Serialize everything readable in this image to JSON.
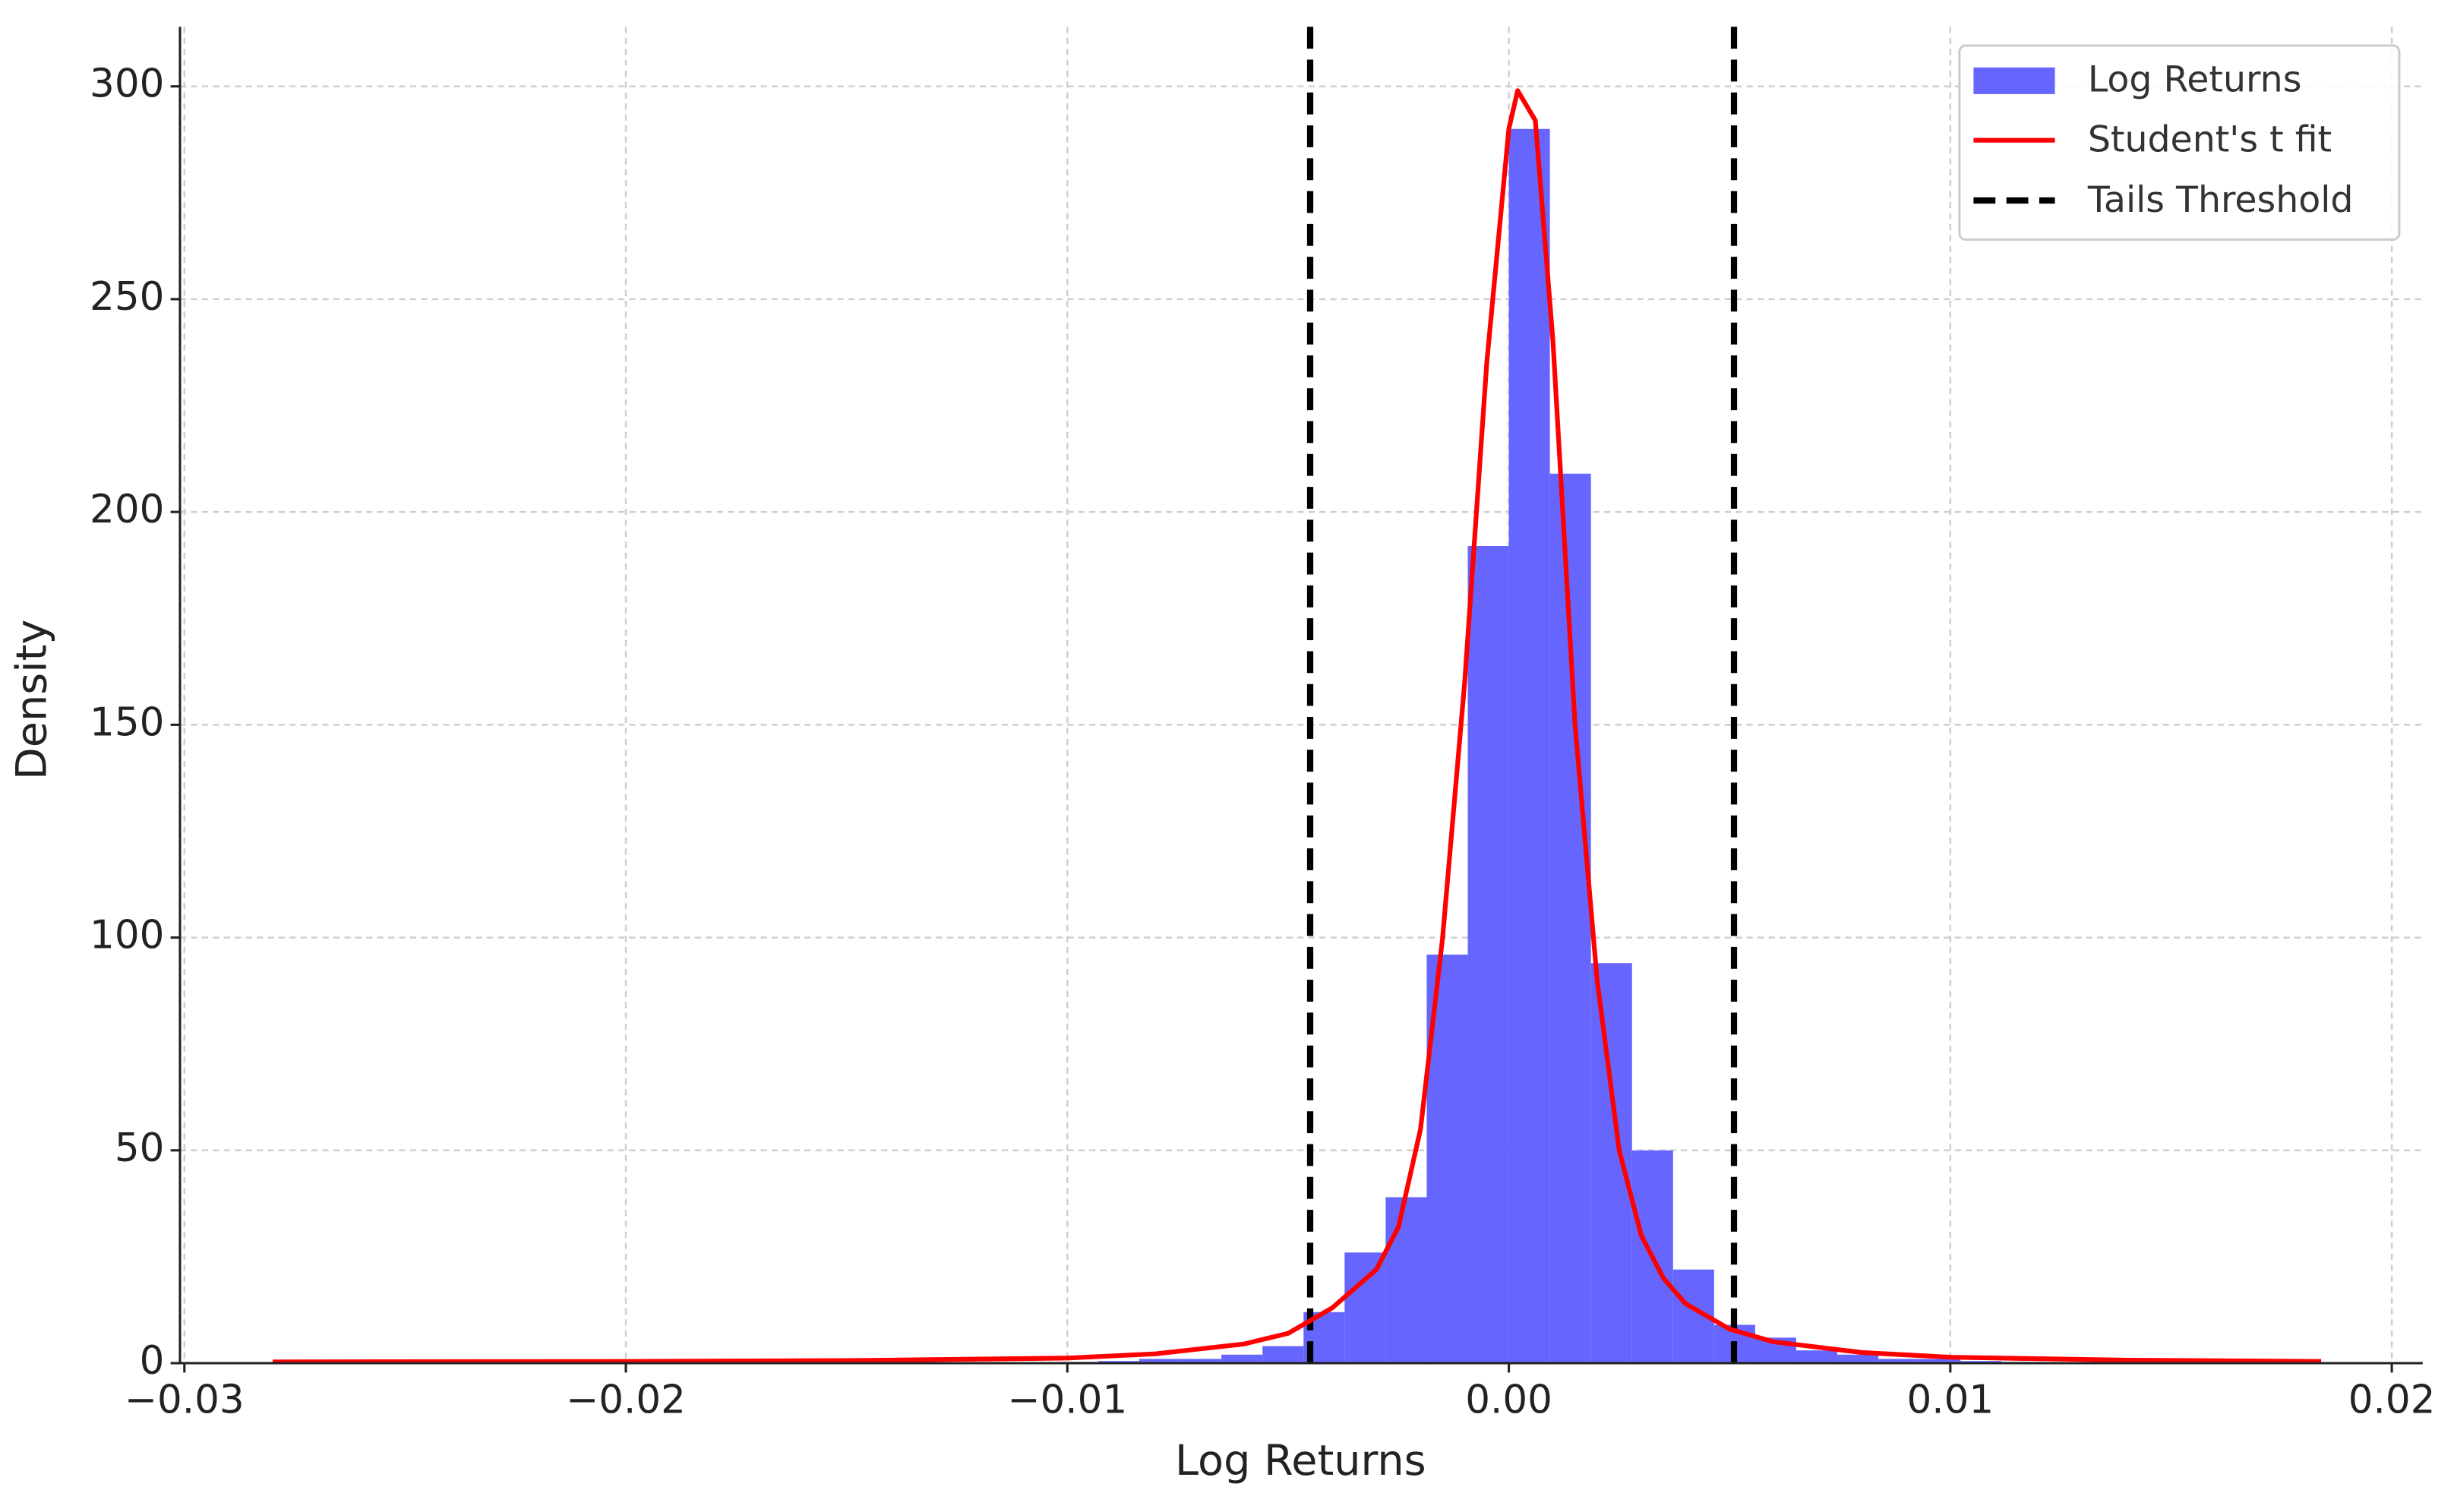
{
  "chart_data": {
    "type": "histogram",
    "xlabel": "Log Returns",
    "ylabel": "Density",
    "name": "Log Returns",
    "color": "#6666ff",
    "bins": [
      -0.0279,
      -0.02697,
      -0.02604,
      -0.02511,
      -0.02418,
      -0.02325,
      -0.02232,
      -0.02139,
      -0.02046,
      -0.01953,
      -0.0186,
      -0.01767,
      -0.01674,
      -0.01581,
      -0.01488,
      -0.01395,
      -0.01302,
      -0.01209,
      -0.01116,
      -0.01023,
      -0.0093,
      -0.00837,
      -0.00744,
      -0.00651,
      -0.00558,
      -0.00465,
      -0.00372,
      -0.00279,
      -0.00186,
      -0.00093,
      0,
      0.00093,
      0.00186,
      0.00279,
      0.00372,
      0.00465,
      0.00558,
      0.00651,
      0.00744,
      0.00837,
      0.0093,
      0.01023,
      0.01116,
      0.01209,
      0.01302,
      0.01395,
      0.01488,
      0.01581,
      0.01674,
      0.01767,
      0.0186
    ],
    "values": [
      0.3,
      0,
      0,
      0,
      0,
      0,
      0,
      0,
      0,
      0,
      0,
      0,
      0,
      0,
      0,
      0,
      0,
      0,
      0.2,
      0.3,
      0.5,
      1,
      1,
      2,
      4,
      12,
      26,
      39,
      96,
      192,
      290,
      209,
      94,
      50,
      22,
      9,
      6,
      3,
      2,
      1,
      1,
      0.5,
      0.3,
      0.2,
      0,
      0,
      0,
      0,
      0,
      0.2
    ],
    "fit": {
      "name": "Student's t fit",
      "color": "#ff0000",
      "x": [
        -0.028,
        -0.02,
        -0.015,
        -0.01,
        -0.008,
        -0.006,
        -0.005,
        -0.004,
        -0.003,
        -0.0025,
        -0.002,
        -0.0015,
        -0.001,
        -0.0005,
        0,
        0.0002,
        0.0006,
        0.001,
        0.0015,
        0.002,
        0.0025,
        0.003,
        0.0035,
        0.004,
        0.005,
        0.006,
        0.008,
        0.01,
        0.014,
        0.0184
      ],
      "y": [
        0.3,
        0.4,
        0.6,
        1.2,
        2.2,
        4.5,
        7,
        13,
        22,
        32,
        55,
        100,
        160,
        235,
        290,
        299,
        292,
        240,
        150,
        90,
        50,
        30,
        20,
        14,
        8,
        5,
        2.5,
        1.4,
        0.7,
        0.4
      ]
    },
    "thresholds": {
      "name": "Tails Threshold",
      "color": "#000000",
      "x": [
        -0.0045,
        0.0051
      ]
    },
    "xlim": [
      -0.0301,
      0.0207
    ],
    "ylim": [
      0,
      314
    ],
    "xticks": [
      {
        "value": -0.03,
        "label": "−0.03"
      },
      {
        "value": -0.02,
        "label": "−0.02"
      },
      {
        "value": -0.01,
        "label": "−0.01"
      },
      {
        "value": 0,
        "label": "0.00"
      },
      {
        "value": 0.01,
        "label": "0.01"
      },
      {
        "value": 0.02,
        "label": "0.02"
      }
    ],
    "yticks": [
      0,
      50,
      100,
      150,
      200,
      250,
      300
    ],
    "grid": true,
    "legend": "upper right"
  }
}
